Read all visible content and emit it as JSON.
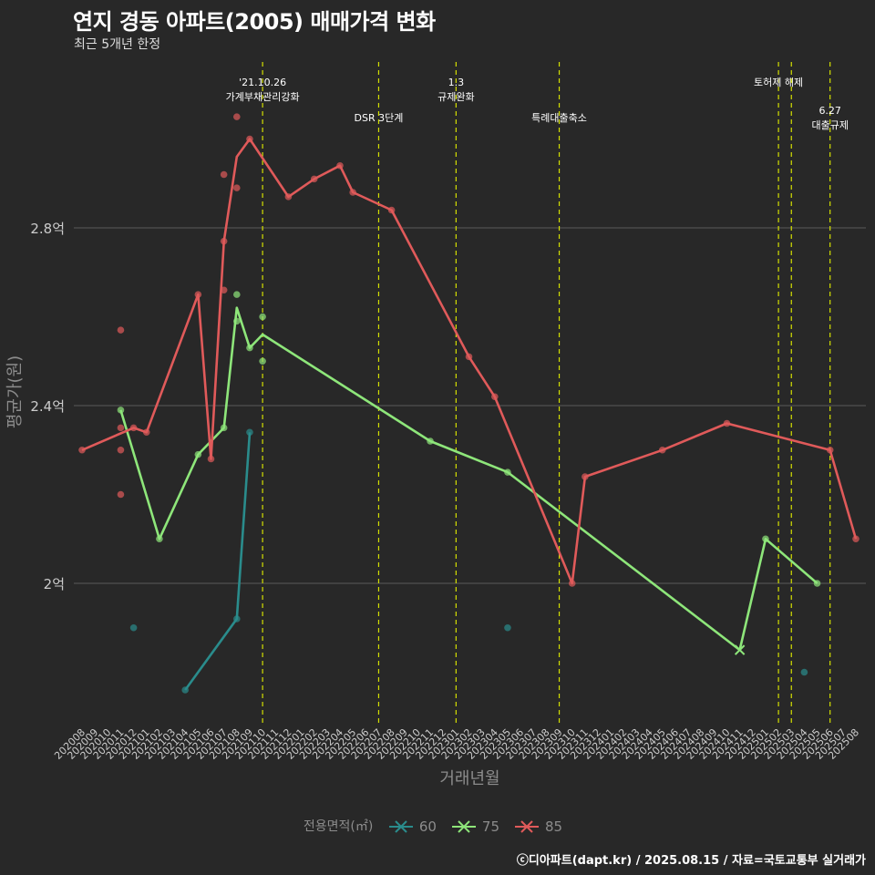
{
  "header": {
    "title": "연지 경동 아파트(2005) 매매가격 변화",
    "subtitle": "최근 5개년 한정"
  },
  "caption": "ⓒ디아파트(dapt.kr) / 2025.08.15 / 자료=국토교통부 실거래가",
  "legend": {
    "title": "전용면적(㎡)"
  },
  "colors": {
    "background": "#282828",
    "grid": "#5a5a5a",
    "event_line": "#d4e000",
    "axis_text": "#8c8c8c"
  },
  "chart_data": {
    "type": "line",
    "xlabel": "거래년월",
    "ylabel": "평균가(원)",
    "ylim": [
      1.7,
      3.1
    ],
    "yticks": [
      {
        "value": 2.0,
        "label": "2억"
      },
      {
        "value": 2.4,
        "label": "2.4억"
      },
      {
        "value": 2.8,
        "label": "2.8억"
      }
    ],
    "x_categories": [
      "202008",
      "202009",
      "202010",
      "202011",
      "202012",
      "202101",
      "202102",
      "202103",
      "202104",
      "202105",
      "202106",
      "202107",
      "202108",
      "202109",
      "202110",
      "202111",
      "202112",
      "202201",
      "202202",
      "202203",
      "202204",
      "202205",
      "202206",
      "202207",
      "202208",
      "202209",
      "202210",
      "202211",
      "202212",
      "202301",
      "202302",
      "202303",
      "202304",
      "202305",
      "202306",
      "202307",
      "202308",
      "202309",
      "202310",
      "202311",
      "202312",
      "202401",
      "202402",
      "202403",
      "202404",
      "202405",
      "202406",
      "202407",
      "202408",
      "202409",
      "202410",
      "202411",
      "202412",
      "202501",
      "202502",
      "202503",
      "202504",
      "202505",
      "202506",
      "202507",
      "202508"
    ],
    "events": [
      {
        "x": "202110",
        "lines": [
          "'21.10.26",
          "가계부채관리강화"
        ],
        "row": 1
      },
      {
        "x": "202207",
        "lines": [
          "DSR 3단계"
        ],
        "row": 2
      },
      {
        "x": "202301",
        "lines": [
          "1.3",
          "규제완화"
        ],
        "row": 1
      },
      {
        "x": "202309",
        "lines": [
          "특례대출축소"
        ],
        "row": 2
      },
      {
        "x": "202502",
        "lines": [
          "토허제 해제"
        ],
        "row": 1
      },
      {
        "x": "202503",
        "lines": [],
        "row": 1
      },
      {
        "x": "202506",
        "lines": [
          "6.27",
          "대출규제"
        ],
        "row": 2
      }
    ],
    "series": [
      {
        "name": "60",
        "color": "#2a8c8c",
        "line": [
          [
            "202104",
            1.76
          ],
          [
            "202108",
            1.92
          ],
          [
            "202109",
            2.34
          ]
        ],
        "points": [
          [
            "202012",
            1.9
          ],
          [
            "202104",
            1.76
          ],
          [
            "202108",
            1.92
          ],
          [
            "202109",
            2.34
          ],
          [
            "202305",
            1.9
          ],
          [
            "202504",
            1.8
          ]
        ],
        "x_marks": []
      },
      {
        "name": "75",
        "color": "#8ee67a",
        "line": [
          [
            "202011",
            2.39
          ],
          [
            "202102",
            2.1
          ],
          [
            "202105",
            2.29
          ],
          [
            "202107",
            2.35
          ],
          [
            "202108",
            2.62
          ],
          [
            "202109",
            2.53
          ],
          [
            "202110",
            2.56
          ],
          [
            "202211",
            2.32
          ],
          [
            "202305",
            2.25
          ],
          [
            "202411",
            1.85
          ],
          [
            "202501",
            2.1
          ],
          [
            "202505",
            2.0
          ]
        ],
        "points": [
          [
            "202011",
            2.39
          ],
          [
            "202102",
            2.1
          ],
          [
            "202105",
            2.29
          ],
          [
            "202107",
            2.35
          ],
          [
            "202108",
            2.65
          ],
          [
            "202108",
            2.59
          ],
          [
            "202109",
            2.53
          ],
          [
            "202110",
            2.6
          ],
          [
            "202110",
            2.5
          ],
          [
            "202211",
            2.32
          ],
          [
            "202305",
            2.25
          ],
          [
            "202501",
            2.1
          ],
          [
            "202505",
            2.0
          ]
        ],
        "x_marks": [
          [
            "202411",
            1.85
          ]
        ]
      },
      {
        "name": "85",
        "color": "#e05a5a",
        "line": [
          [
            "202008",
            2.3
          ],
          [
            "202012",
            2.35
          ],
          [
            "202101",
            2.34
          ],
          [
            "202105",
            2.65
          ],
          [
            "202106",
            2.28
          ],
          [
            "202107",
            2.77
          ],
          [
            "202108",
            2.96
          ],
          [
            "202109",
            3.0
          ],
          [
            "202112",
            2.87
          ],
          [
            "202202",
            2.91
          ],
          [
            "202204",
            2.94
          ],
          [
            "202205",
            2.88
          ],
          [
            "202208",
            2.84
          ],
          [
            "202302",
            2.51
          ],
          [
            "202304",
            2.42
          ],
          [
            "202310",
            2.0
          ],
          [
            "202311",
            2.24
          ],
          [
            "202405",
            2.3
          ],
          [
            "202410",
            2.36
          ],
          [
            "202506",
            2.3
          ],
          [
            "202508",
            2.1
          ]
        ],
        "points": [
          [
            "202008",
            2.3
          ],
          [
            "202011",
            2.57
          ],
          [
            "202011",
            2.35
          ],
          [
            "202011",
            2.3
          ],
          [
            "202011",
            2.2
          ],
          [
            "202012",
            2.35
          ],
          [
            "202101",
            2.34
          ],
          [
            "202105",
            2.65
          ],
          [
            "202106",
            2.28
          ],
          [
            "202107",
            2.92
          ],
          [
            "202107",
            2.77
          ],
          [
            "202107",
            2.66
          ],
          [
            "202108",
            3.05
          ],
          [
            "202108",
            2.89
          ],
          [
            "202109",
            3.0
          ],
          [
            "202112",
            2.87
          ],
          [
            "202202",
            2.91
          ],
          [
            "202204",
            2.94
          ],
          [
            "202205",
            2.88
          ],
          [
            "202208",
            2.84
          ],
          [
            "202302",
            2.51
          ],
          [
            "202304",
            2.42
          ],
          [
            "202310",
            2.0
          ],
          [
            "202311",
            2.24
          ],
          [
            "202405",
            2.3
          ],
          [
            "202410",
            2.36
          ],
          [
            "202506",
            2.3
          ],
          [
            "202508",
            2.1
          ]
        ],
        "x_marks": []
      }
    ]
  }
}
